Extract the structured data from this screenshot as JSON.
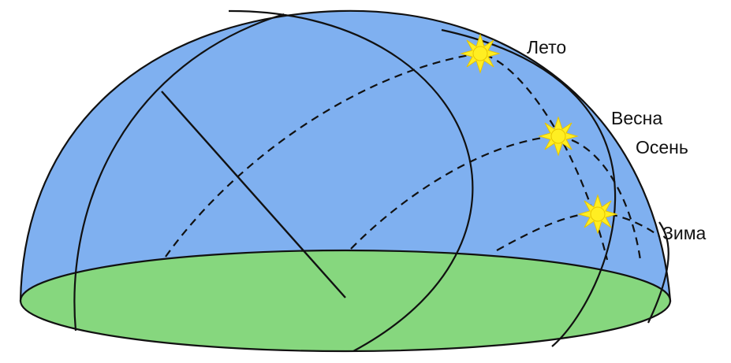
{
  "colors": {
    "sky_dome": "#7fb0f0",
    "ground": "#86d77e",
    "outline": "#111111",
    "sun": "#ffee22",
    "sun_edge": "#e7c400",
    "background": "#ffffff"
  },
  "icons": {
    "sun": "sun-icon"
  },
  "labels": {
    "summer": "Лето",
    "spring": "Весна",
    "autumn": "Осень",
    "winter": "Зима"
  }
}
